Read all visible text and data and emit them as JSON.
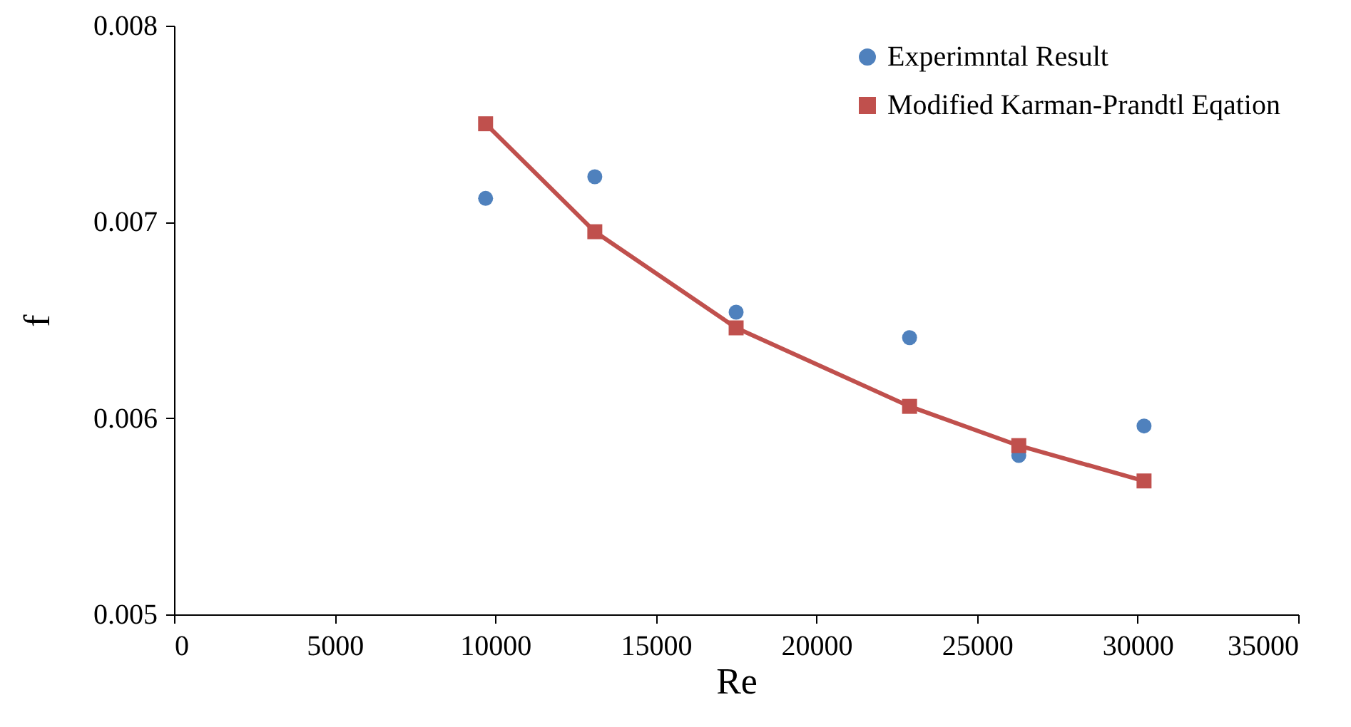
{
  "chart_data": {
    "type": "scatter",
    "xlabel": "Re",
    "ylabel": "f",
    "xlim": [
      0,
      35000
    ],
    "xticks": [
      0,
      5000,
      10000,
      15000,
      20000,
      25000,
      30000,
      35000
    ],
    "ylim": [
      0.005,
      0.008
    ],
    "yticks": [
      0.005,
      0.006,
      0.007,
      0.008
    ],
    "grid": false,
    "legend": "top right",
    "series": [
      {
        "name": "Experimntal Result",
        "marker": "circle",
        "color": "#4f81bd",
        "x": [
          9700,
          13100,
          17500,
          22900,
          26300,
          30200
        ],
        "values": [
          0.00712,
          0.00723,
          0.00654,
          0.00641,
          0.00581,
          0.00596
        ]
      },
      {
        "name": "Modified Karman-Prandtl Eqation",
        "type": "line",
        "marker": "square",
        "line_style": "solid",
        "color": "#c0504d",
        "x": [
          9700,
          13100,
          17500,
          22900,
          26300,
          30200
        ],
        "values": [
          0.0075,
          0.00695,
          0.00646,
          0.00606,
          0.00586,
          0.00568
        ]
      }
    ]
  }
}
